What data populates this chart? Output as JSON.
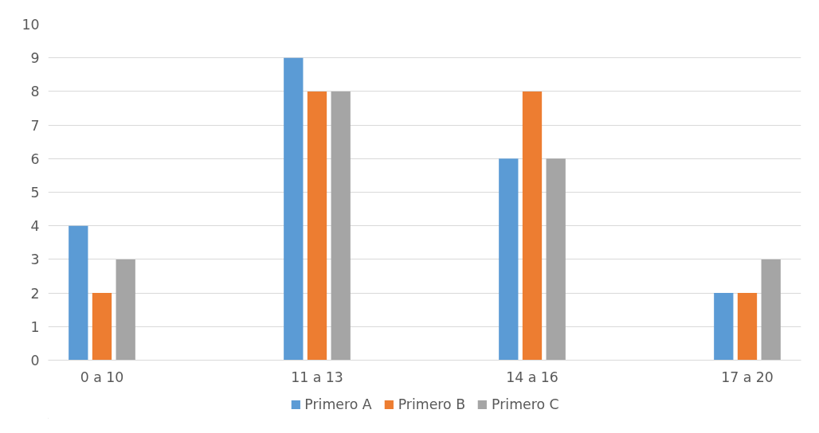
{
  "chart_data": {
    "type": "bar",
    "categories": [
      "0 a 10",
      "11 a 13",
      "14 a 16",
      "17 a 20"
    ],
    "series": [
      {
        "name": "Primero A",
        "color": "#5b9bd5",
        "values": [
          4,
          9,
          6,
          2
        ]
      },
      {
        "name": "Primero B",
        "color": "#ed7d31",
        "values": [
          2,
          8,
          8,
          2
        ]
      },
      {
        "name": "Primero C",
        "color": "#a5a5a5",
        "values": [
          3,
          8,
          6,
          3
        ]
      }
    ],
    "ylim": [
      0,
      10
    ],
    "yticks": [
      0,
      1,
      2,
      3,
      4,
      5,
      6,
      7,
      8,
      9,
      10
    ],
    "grid": "y",
    "legend": "bottom"
  }
}
